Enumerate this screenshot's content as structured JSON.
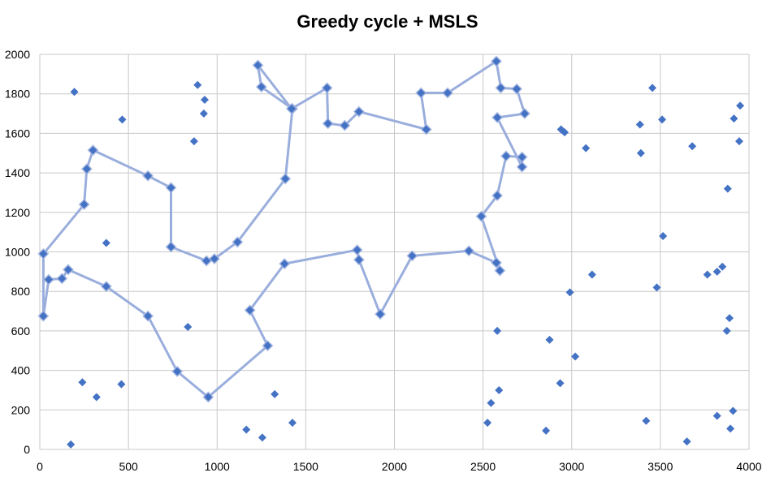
{
  "chart_data": {
    "type": "scatter",
    "title": "Greedy cycle + MSLS",
    "xlim": [
      0,
      4000
    ],
    "ylim": [
      0,
      2000
    ],
    "x_ticks": [
      "0",
      "500",
      "1000",
      "1500",
      "2000",
      "2500",
      "3000",
      "3500",
      "4000"
    ],
    "y_ticks": [
      "0",
      "200",
      "400",
      "600",
      "800",
      "1000",
      "1200",
      "1400",
      "1600",
      "1800",
      "2000"
    ],
    "grid": true,
    "colors": {
      "points": "#4472c4",
      "cycle": "#9aaedd",
      "grid": "#c8c8c8"
    },
    "cycle": [
      [
        1230,
        1945
      ],
      [
        1250,
        1835
      ],
      [
        1425,
        1725
      ],
      [
        1385,
        1370
      ],
      [
        1115,
        1050
      ],
      [
        985,
        965
      ],
      [
        940,
        955
      ],
      [
        740,
        1025
      ],
      [
        740,
        1325
      ],
      [
        610,
        1385
      ],
      [
        300,
        1515
      ],
      [
        265,
        1420
      ],
      [
        250,
        1240
      ],
      [
        20,
        990
      ],
      [
        20,
        675
      ],
      [
        50,
        860
      ],
      [
        125,
        865
      ],
      [
        160,
        910
      ],
      [
        375,
        825
      ],
      [
        610,
        675
      ],
      [
        775,
        395
      ],
      [
        950,
        265
      ],
      [
        1285,
        525
      ],
      [
        1185,
        705
      ],
      [
        1380,
        940
      ],
      [
        1790,
        1010
      ],
      [
        1800,
        960
      ],
      [
        1920,
        685
      ],
      [
        2100,
        980
      ],
      [
        2420,
        1005
      ],
      [
        2575,
        945
      ],
      [
        2595,
        905
      ],
      [
        2490,
        1180
      ],
      [
        2580,
        1285
      ],
      [
        2630,
        1485
      ],
      [
        2720,
        1480
      ],
      [
        2720,
        1430
      ],
      [
        2580,
        1680
      ],
      [
        2735,
        1700
      ],
      [
        2690,
        1825
      ],
      [
        2600,
        1830
      ],
      [
        2575,
        1965
      ],
      [
        2300,
        1805
      ],
      [
        2150,
        1805
      ],
      [
        2180,
        1620
      ],
      [
        1800,
        1710
      ],
      [
        1720,
        1640
      ],
      [
        1625,
        1650
      ],
      [
        1620,
        1830
      ],
      [
        1420,
        1725
      ]
    ],
    "free_points": [
      [
        195,
        1810
      ],
      [
        465,
        1670
      ],
      [
        890,
        1845
      ],
      [
        930,
        1770
      ],
      [
        925,
        1700
      ],
      [
        870,
        1560
      ],
      [
        375,
        1045
      ],
      [
        835,
        620
      ],
      [
        240,
        340
      ],
      [
        460,
        330
      ],
      [
        320,
        265
      ],
      [
        175,
        25
      ],
      [
        1165,
        100
      ],
      [
        1255,
        60
      ],
      [
        1325,
        280
      ],
      [
        1425,
        135
      ],
      [
        2580,
        600
      ],
      [
        2875,
        555
      ],
      [
        2545,
        235
      ],
      [
        2590,
        300
      ],
      [
        2525,
        135
      ],
      [
        2855,
        95
      ],
      [
        3020,
        470
      ],
      [
        2935,
        335
      ],
      [
        2990,
        795
      ],
      [
        3115,
        885
      ],
      [
        2940,
        1620
      ],
      [
        2960,
        1605
      ],
      [
        3080,
        1525
      ],
      [
        3385,
        1645
      ],
      [
        3390,
        1500
      ],
      [
        3455,
        1830
      ],
      [
        3510,
        1670
      ],
      [
        3680,
        1535
      ],
      [
        3515,
        1080
      ],
      [
        3480,
        820
      ],
      [
        3765,
        885
      ],
      [
        3820,
        900
      ],
      [
        3850,
        925
      ],
      [
        3880,
        1320
      ],
      [
        3915,
        1675
      ],
      [
        3945,
        1560
      ],
      [
        3950,
        1740
      ],
      [
        3890,
        665
      ],
      [
        3875,
        600
      ],
      [
        3910,
        195
      ],
      [
        3895,
        105
      ],
      [
        3820,
        170
      ],
      [
        3420,
        145
      ],
      [
        3650,
        40
      ]
    ]
  }
}
